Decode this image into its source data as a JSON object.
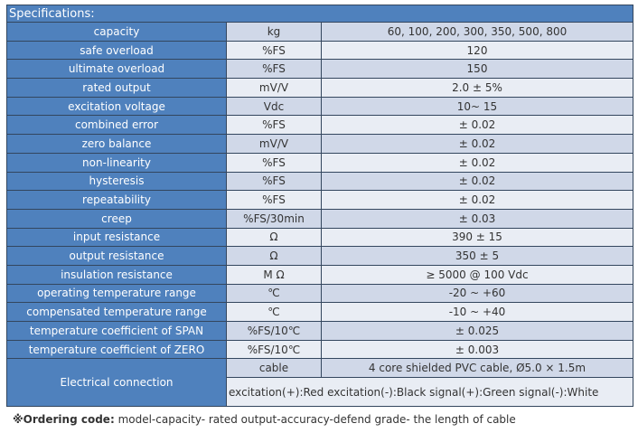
{
  "header": "Specifications:",
  "rows": [
    {
      "param": "capacity",
      "unit": "kg",
      "value": "60, 100, 200, 300, 350, 500, 800"
    },
    {
      "param": "safe overload",
      "unit": "%FS",
      "value": "120"
    },
    {
      "param": "ultimate overload",
      "unit": "%FS",
      "value": "150"
    },
    {
      "param": "rated output",
      "unit": "mV/V",
      "value": "2.0 ± 5%"
    },
    {
      "param": "excitation voltage",
      "unit": "Vdc",
      "value": "10~ 15"
    },
    {
      "param": "combined error",
      "unit": "%FS",
      "value": "± 0.02"
    },
    {
      "param": "zero balance",
      "unit": "mV/V",
      "value": "± 0.02"
    },
    {
      "param": "non-linearity",
      "unit": "%FS",
      "value": "± 0.02"
    },
    {
      "param": "hysteresis",
      "unit": "%FS",
      "value": "± 0.02"
    },
    {
      "param": "repeatability",
      "unit": "%FS",
      "value": "± 0.02"
    },
    {
      "param": "creep",
      "unit": "%FS/30min",
      "value": "± 0.03"
    },
    {
      "param": "input resistance",
      "unit": "Ω",
      "value": "390 ± 15"
    },
    {
      "param": "output resistance",
      "unit": "Ω",
      "value": "350 ± 5"
    },
    {
      "param": "insulation resistance",
      "unit": "M Ω",
      "value": "≥ 5000 @ 100 Vdc"
    },
    {
      "param": "operating temperature range",
      "unit": "℃",
      "value": "-20 ~ +60"
    },
    {
      "param": "compensated temperature range",
      "unit": "℃",
      "value": "-10 ~ +40"
    },
    {
      "param": "temperature coefficient of SPAN",
      "unit": "%FS/10℃",
      "value": "± 0.025"
    },
    {
      "param": "temperature coefficient of ZERO",
      "unit": "%FS/10℃",
      "value": "± 0.003"
    }
  ],
  "electrical": {
    "label": "Electrical connection",
    "cable_unit": "cable",
    "cable_value": "4 core shielded PVC cable, Ø5.0 × 1.5m",
    "wiring": "excitation(+):Red excitation(-):Black signal(+):Green  signal(-):White"
  },
  "footer": {
    "label": "※Ordering code:",
    "text": " model-capacity- rated output-accuracy-defend grade- the length of cable"
  }
}
